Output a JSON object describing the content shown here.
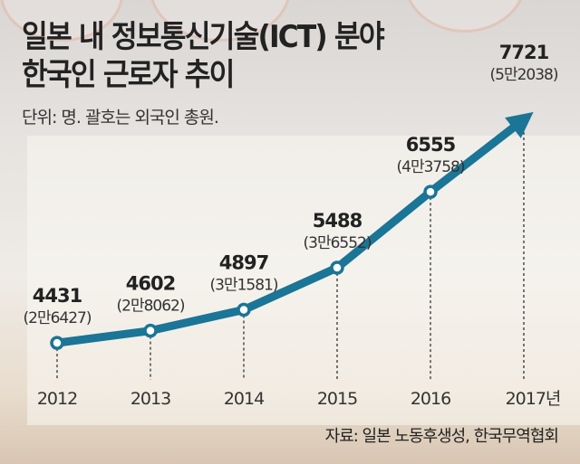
{
  "title_line1": "일본 내 정보통신기술(ICT) 분야",
  "title_line2": "한국인 근로자 추이",
  "subtitle": "단위: 명. 괄호는 외국인 총원.",
  "source": "자료: 일본 노동후생성, 한국무역협회",
  "colors": {
    "line": "#1a7596",
    "text": "#222222"
  },
  "chart_data": {
    "type": "line",
    "title": "일본 내 정보통신기술(ICT) 분야 한국인 근로자 추이",
    "categories": [
      "2012",
      "2013",
      "2014",
      "2015",
      "2016",
      "2017년"
    ],
    "series": [
      {
        "name": "한국인 근로자",
        "values": [
          4431,
          4602,
          4897,
          5488,
          6555,
          7721
        ]
      },
      {
        "name": "외국인 총원",
        "values": [
          26427,
          28062,
          31581,
          36552,
          43758,
          52038
        ]
      }
    ],
    "value_labels": [
      "4431",
      "4602",
      "4897",
      "5488",
      "6555",
      "7721"
    ],
    "foreign_labels": [
      "(2만6427)",
      "(2만8062)",
      "(3만1581)",
      "(3만6552)",
      "(4만3758)",
      "(5만2038)"
    ],
    "xlabel": "",
    "ylabel": "명",
    "ylim": [
      4000,
      8000
    ],
    "grid": false,
    "legend": "none"
  }
}
